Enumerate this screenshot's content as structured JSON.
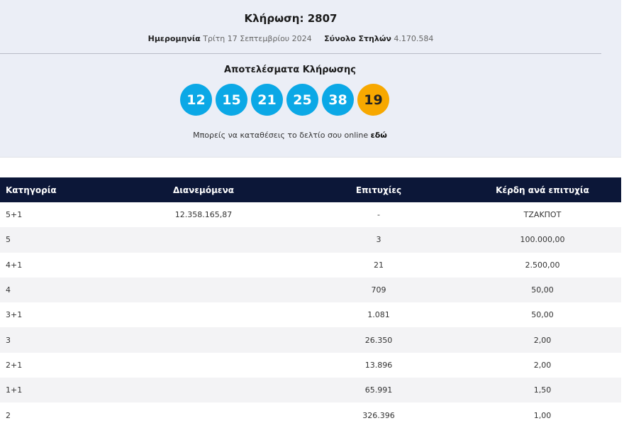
{
  "draw": {
    "title": "Κλήρωση: 2807",
    "date_label": "Ημερομηνία",
    "date": "Τρίτη 17 Σεπτεμβρίου 2024",
    "columns_label": "Σύνολο Στηλών",
    "columns": "4.170.584"
  },
  "results": {
    "title": "Αποτελέσματα Κλήρωσης",
    "numbers": [
      "12",
      "15",
      "21",
      "25",
      "38"
    ],
    "bonus": "19",
    "main_color": "#0ba8e6",
    "bonus_color": "#f7a800",
    "online_text": "Μπορείς να καταθέσεις το δελτίο σου online",
    "online_link": "εδώ"
  },
  "table": {
    "headers": [
      "Κατηγορία",
      "Διανεμόμενα",
      "Επιτυχίες",
      "Κέρδη ανά επιτυχία"
    ],
    "rows": [
      [
        "5+1",
        "12.358.165,87",
        "-",
        "ΤΖΑΚΠΟΤ"
      ],
      [
        "5",
        "",
        "3",
        "100.000,00"
      ],
      [
        "4+1",
        "",
        "21",
        "2.500,00"
      ],
      [
        "4",
        "",
        "709",
        "50,00"
      ],
      [
        "3+1",
        "",
        "1.081",
        "50,00"
      ],
      [
        "3",
        "",
        "26.350",
        "2,00"
      ],
      [
        "2+1",
        "",
        "13.896",
        "2,00"
      ],
      [
        "1+1",
        "",
        "65.991",
        "1,50"
      ],
      [
        "2",
        "",
        "326.396",
        "1,00"
      ]
    ]
  }
}
